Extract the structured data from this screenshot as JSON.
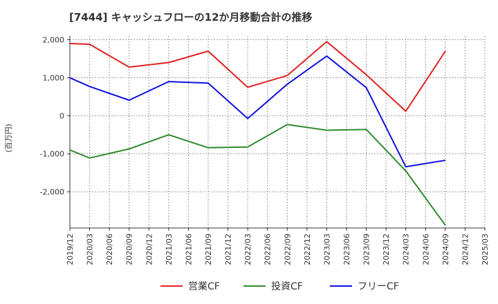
{
  "chart_data": {
    "type": "line",
    "title": "[7444]  キャッシュフローの12か月移動合計の推移",
    "ylabel": "(百万円)",
    "xlabel": "",
    "ylim": [
      -2950,
      2100
    ],
    "yticks": [
      2000,
      1000,
      0,
      -1000,
      -2000
    ],
    "ytick_labels": [
      "2,000",
      "1,000",
      "0",
      "-1,000",
      "-2,000"
    ],
    "categories": [
      "2019/12",
      "2020/03",
      "2020/06",
      "2020/09",
      "2020/12",
      "2021/03",
      "2021/06",
      "2021/09",
      "2021/12",
      "2022/03",
      "2022/06",
      "2022/09",
      "2022/12",
      "2023/03",
      "2023/06",
      "2023/09",
      "2023/12",
      "2024/03",
      "2024/06",
      "2024/09",
      "2024/12",
      "2025/03"
    ],
    "grid": true,
    "legend_position": "bottom",
    "series": [
      {
        "name": "営業CF",
        "color": "#e02020",
        "values": [
          1900,
          1880,
          null,
          1280,
          null,
          1400,
          null,
          1700,
          null,
          750,
          null,
          1060,
          null,
          1950,
          null,
          1080,
          null,
          120,
          null,
          1700,
          null,
          null
        ]
      },
      {
        "name": "投資CF",
        "color": "#2e8b2e",
        "values": [
          -900,
          -1110,
          null,
          -870,
          null,
          -500,
          null,
          -840,
          null,
          -820,
          null,
          -230,
          null,
          -380,
          null,
          -360,
          null,
          -1450,
          null,
          -2880,
          null,
          null
        ]
      },
      {
        "name": "フリーCF",
        "color": "#1010e0",
        "values": [
          1000,
          770,
          null,
          410,
          null,
          900,
          null,
          860,
          null,
          -70,
          null,
          830,
          null,
          1570,
          null,
          740,
          null,
          -1340,
          null,
          -1170,
          null,
          null
        ]
      }
    ]
  }
}
